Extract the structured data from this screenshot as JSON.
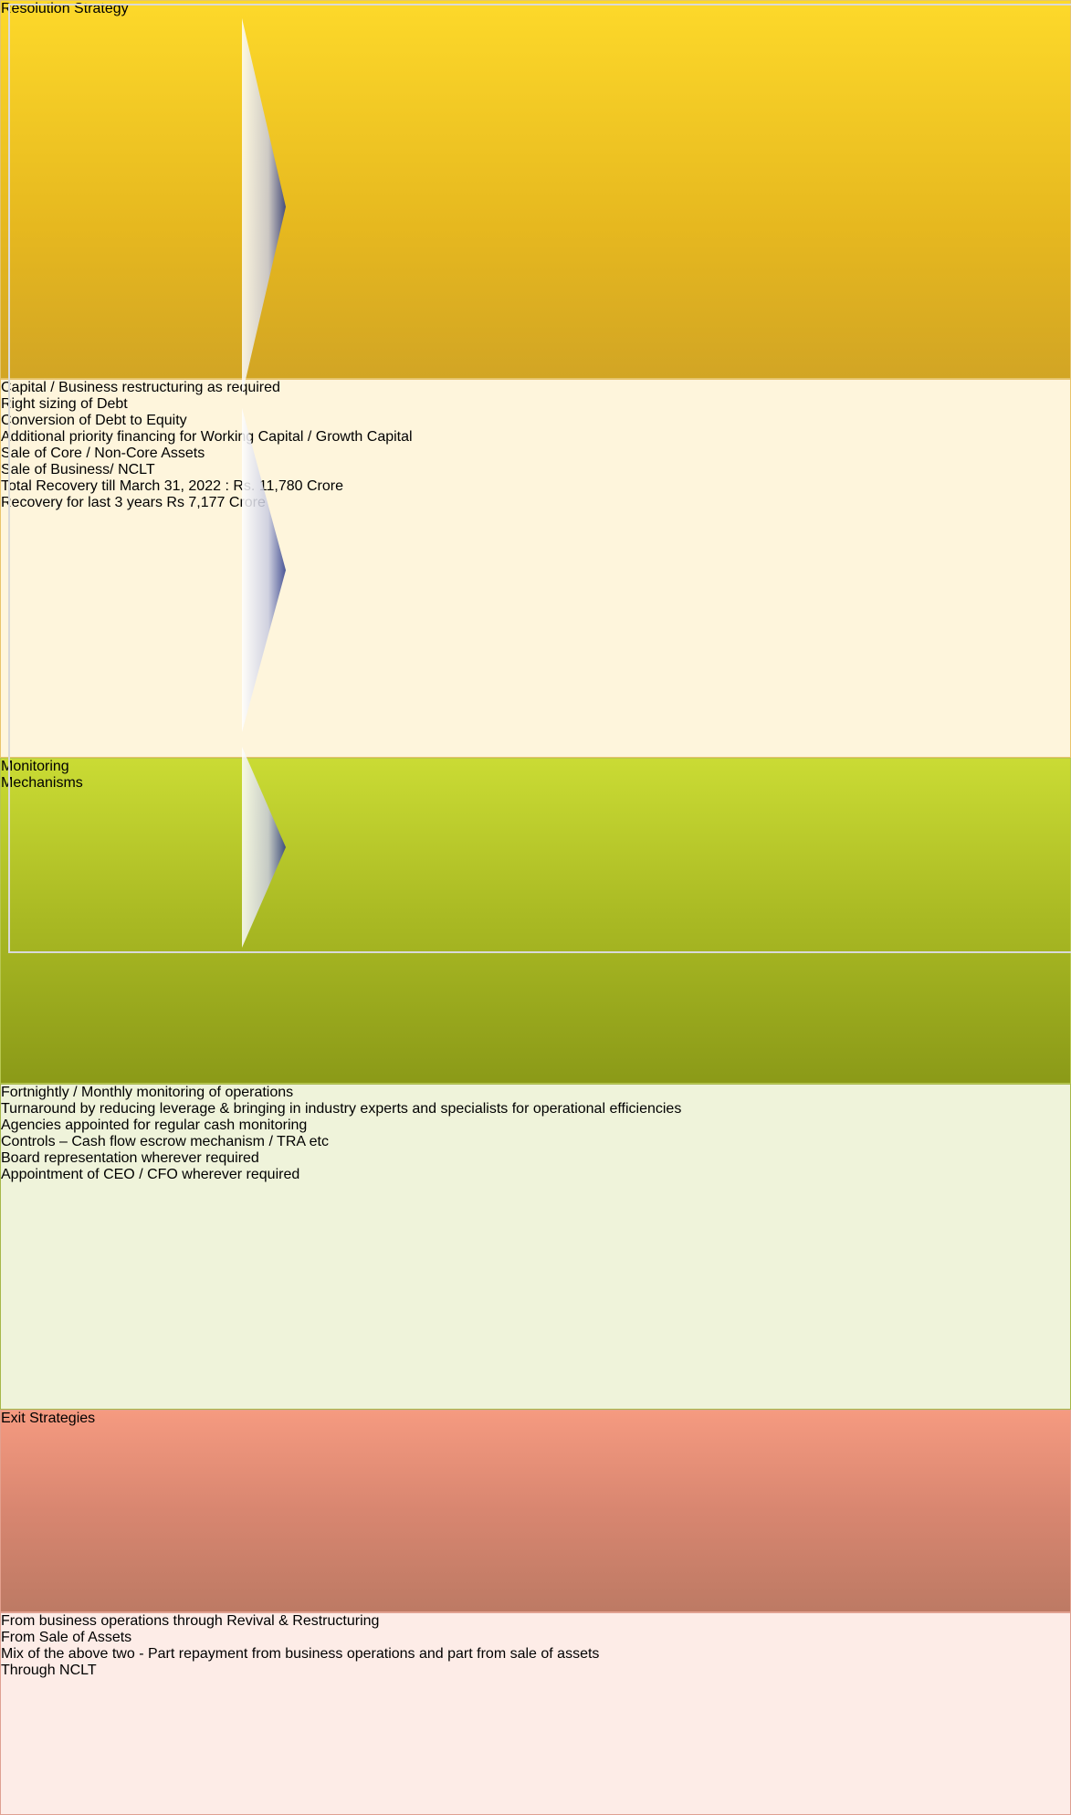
{
  "sections": [
    {
      "label": "Resolution Strategy",
      "items": [
        "Capital / Business restructuring as required",
        "Right sizing of Debt",
        "Conversion of Debt to Equity",
        "Additional priority financing for Working Capital / Growth Capital",
        "Sale of Core / Non-Core Assets",
        "Sale of Business/ NCLT",
        "Total Recovery till March 31, 2022 : Rs. 11,780 Crore",
        "Recovery for last 3 years Rs 7,177 Crore"
      ]
    },
    {
      "label": "Monitoring Mechanisms",
      "items": [
        "Fortnightly / Monthly monitoring of operations",
        "Turnaround by reducing leverage & bringing in industry experts and specialists for operational efficiencies",
        "Agencies appointed for regular cash monitoring",
        "Controls – Cash flow escrow mechanism / TRA etc",
        "Board representation wherever required",
        "Appointment of CEO / CFO wherever required"
      ]
    },
    {
      "label": "Exit Strategies",
      "items": [
        "From business operations through Revival & Restructuring",
        "From Sale of Assets",
        "Mix of the above two - Part repayment from business operations and part from sale of assets",
        "Through NCLT"
      ]
    }
  ]
}
